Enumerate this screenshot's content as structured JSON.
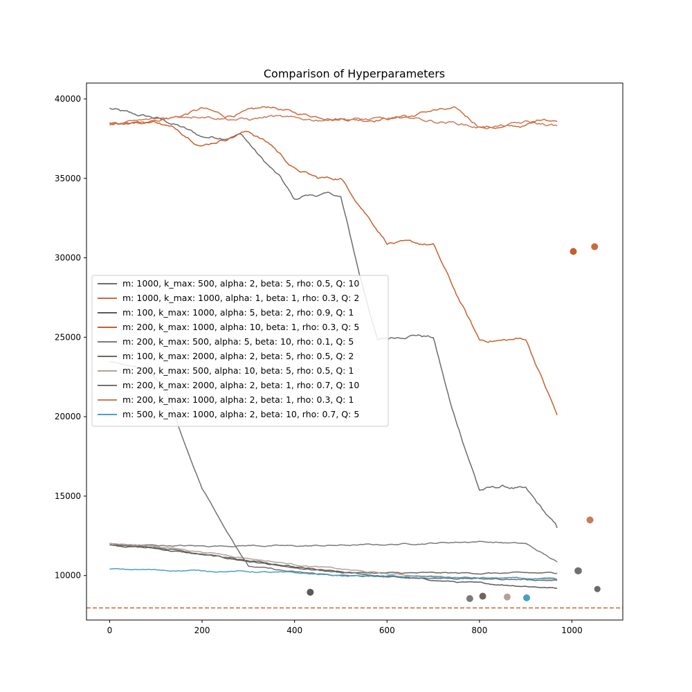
{
  "chart_data": {
    "type": "line",
    "title": "Comparison of Hyperparameters",
    "xlabel": "",
    "ylabel": "",
    "xlim": [
      -50,
      1110
    ],
    "ylim": [
      7200,
      41000
    ],
    "x_ticks": [
      0,
      200,
      400,
      600,
      800,
      1000
    ],
    "x_tick_labels": [
      "0",
      "200",
      "400",
      "600",
      "800",
      "1000"
    ],
    "y_ticks": [
      10000,
      15000,
      20000,
      25000,
      30000,
      35000,
      40000
    ],
    "y_tick_labels": [
      "10000",
      "15000",
      "20000",
      "25000",
      "30000",
      "35000",
      "40000"
    ],
    "grid": false,
    "legend_position": "center-left",
    "reference_line": {
      "y": 7960,
      "color": "#c8642e",
      "style": "dashed"
    },
    "series": [
      {
        "name": "m: 1000, k_max: 500, alpha: 2, beta: 5, rho: 0.5, Q: 10",
        "color": "#6b6b6b",
        "points": [
          [
            0,
            39400
          ],
          [
            50,
            39000
          ],
          [
            100,
            38800
          ],
          [
            150,
            38300
          ],
          [
            200,
            37600
          ],
          [
            250,
            37600
          ],
          [
            285,
            37800
          ],
          [
            330,
            36200
          ],
          [
            370,
            35000
          ],
          [
            400,
            33600
          ],
          [
            420,
            33900
          ],
          [
            480,
            34000
          ],
          [
            500,
            33800
          ],
          [
            540,
            29000
          ],
          [
            580,
            24800
          ],
          [
            620,
            25000
          ],
          [
            660,
            25200
          ],
          [
            700,
            25000
          ],
          [
            740,
            20500
          ],
          [
            800,
            15400
          ],
          [
            850,
            15600
          ],
          [
            900,
            15400
          ],
          [
            968,
            13000
          ]
        ],
        "final": {
          "x": 1013,
          "y": 10300
        }
      },
      {
        "name": "m: 1000, k_max: 1000, alpha: 1, beta: 1, rho: 0.3, Q: 2",
        "color": "#d0693a",
        "points": [
          [
            0,
            38500
          ],
          [
            50,
            38400
          ],
          [
            100,
            38700
          ],
          [
            150,
            38900
          ],
          [
            200,
            39400
          ],
          [
            250,
            38900
          ],
          [
            300,
            39200
          ],
          [
            350,
            39500
          ],
          [
            400,
            39100
          ],
          [
            450,
            38900
          ],
          [
            500,
            38800
          ],
          [
            550,
            38700
          ],
          [
            600,
            38800
          ],
          [
            650,
            38900
          ],
          [
            700,
            39300
          ],
          [
            750,
            39300
          ],
          [
            800,
            38300
          ],
          [
            850,
            38200
          ],
          [
            900,
            38300
          ],
          [
            940,
            38800
          ],
          [
            968,
            38600
          ]
        ],
        "final": {
          "x": 1049,
          "y": 30700
        }
      },
      {
        "name": "m: 100, k_max: 1000, alpha: 5, beta: 2, rho: 0.9, Q: 1",
        "color": "#5a5a5a",
        "points": [
          [
            0,
            11950
          ],
          [
            100,
            11700
          ],
          [
            200,
            11300
          ],
          [
            300,
            10900
          ],
          [
            400,
            10500
          ],
          [
            500,
            10200
          ],
          [
            600,
            9950
          ],
          [
            700,
            9700
          ],
          [
            800,
            9500
          ],
          [
            900,
            9350
          ],
          [
            968,
            9200
          ]
        ],
        "final": {
          "x": 434,
          "y": 8950
        }
      },
      {
        "name": "m: 200, k_max: 1000, alpha: 10, beta: 1, rho: 0.3, Q: 5",
        "color": "#c75f2b",
        "points": [
          [
            0,
            38500
          ],
          [
            100,
            38600
          ],
          [
            150,
            38000
          ],
          [
            200,
            37100
          ],
          [
            250,
            37500
          ],
          [
            300,
            38000
          ],
          [
            350,
            37100
          ],
          [
            400,
            35600
          ],
          [
            450,
            35000
          ],
          [
            500,
            35000
          ],
          [
            540,
            33400
          ],
          [
            600,
            31000
          ],
          [
            650,
            30900
          ],
          [
            700,
            30800
          ],
          [
            750,
            27700
          ],
          [
            800,
            24800
          ],
          [
            850,
            24800
          ],
          [
            900,
            24900
          ],
          [
            968,
            20100
          ]
        ],
        "final": {
          "x": 1003,
          "y": 30400
        }
      },
      {
        "name": "m: 200, k_max: 500, alpha: 5, beta: 10, rho: 0.1, Q: 5",
        "color": "#7a7a7a",
        "points": [
          [
            0,
            11900
          ],
          [
            100,
            11900
          ],
          [
            200,
            11850
          ],
          [
            300,
            11900
          ],
          [
            400,
            11850
          ],
          [
            500,
            11900
          ],
          [
            600,
            11950
          ],
          [
            700,
            12050
          ],
          [
            800,
            12150
          ],
          [
            900,
            12000
          ],
          [
            968,
            10850
          ]
        ],
        "final": {
          "x": 779,
          "y": 8550
        }
      },
      {
        "name": "m: 100, k_max: 2000, alpha: 2, beta: 5, rho: 0.5, Q: 2",
        "color": "#6e655f",
        "points": [
          [
            0,
            12000
          ],
          [
            100,
            11800
          ],
          [
            200,
            11400
          ],
          [
            300,
            10900
          ],
          [
            400,
            10500
          ],
          [
            500,
            10200
          ],
          [
            600,
            10150
          ],
          [
            700,
            10150
          ],
          [
            800,
            10150
          ],
          [
            900,
            10150
          ],
          [
            968,
            10150
          ]
        ],
        "final": {
          "x": 807,
          "y": 8700
        }
      },
      {
        "name": "m: 200, k_max: 500, alpha: 10, beta: 5, rho: 0.5, Q: 1",
        "color": "#b3a09a",
        "points": [
          [
            0,
            12050
          ],
          [
            100,
            11850
          ],
          [
            200,
            11500
          ],
          [
            300,
            11100
          ],
          [
            400,
            10700
          ],
          [
            500,
            10400
          ],
          [
            600,
            10100
          ],
          [
            700,
            9950
          ],
          [
            800,
            9850
          ],
          [
            900,
            9800
          ],
          [
            968,
            9750
          ]
        ],
        "final": {
          "x": 860,
          "y": 8650
        }
      },
      {
        "name": "m: 200, k_max: 2000, alpha: 2, beta: 1, rho: 0.7, Q: 10",
        "color": "#707070",
        "points": [
          [
            0,
            23500
          ],
          [
            80,
            23000
          ],
          [
            120,
            21800
          ],
          [
            160,
            18500
          ],
          [
            200,
            15500
          ],
          [
            250,
            13000
          ],
          [
            300,
            10600
          ],
          [
            350,
            10400
          ],
          [
            400,
            10200
          ],
          [
            500,
            10000
          ],
          [
            600,
            9900
          ],
          [
            700,
            9850
          ],
          [
            800,
            9800
          ],
          [
            900,
            9750
          ],
          [
            968,
            9700
          ]
        ],
        "final": {
          "x": 1014,
          "y": 10300
        }
      },
      {
        "name": "m: 200, k_max: 1000, alpha: 2, beta: 1, rho: 0.3, Q: 1",
        "color": "#c97b5a",
        "points": [
          [
            0,
            38400
          ],
          [
            100,
            38700
          ],
          [
            150,
            38900
          ],
          [
            200,
            39000
          ],
          [
            250,
            38800
          ],
          [
            300,
            38700
          ],
          [
            350,
            38900
          ],
          [
            400,
            38700
          ],
          [
            450,
            38700
          ],
          [
            500,
            38800
          ],
          [
            550,
            38700
          ],
          [
            600,
            38700
          ],
          [
            650,
            38800
          ],
          [
            700,
            38600
          ],
          [
            750,
            38500
          ],
          [
            800,
            38200
          ],
          [
            850,
            38300
          ],
          [
            900,
            38500
          ],
          [
            968,
            38300
          ]
        ],
        "final": {
          "x": 1039,
          "y": 13500
        }
      },
      {
        "name": "m: 500, k_max: 1000, alpha: 2, beta: 10, rho: 0.7, Q: 5",
        "color": "#4aa0c4",
        "points": [
          [
            0,
            10400
          ],
          [
            100,
            10350
          ],
          [
            200,
            10300
          ],
          [
            300,
            10250
          ],
          [
            400,
            10150
          ],
          [
            500,
            10000
          ],
          [
            600,
            9950
          ],
          [
            700,
            9900
          ],
          [
            800,
            9850
          ],
          [
            900,
            9800
          ],
          [
            968,
            9750
          ]
        ],
        "final": {
          "x": 902,
          "y": 8600
        }
      }
    ],
    "extra_markers": [
      {
        "x": 1055,
        "y": 9150,
        "color": "#4aa0c4"
      },
      {
        "x": 1055,
        "y": 9150,
        "color": "#6b6b6b"
      }
    ]
  }
}
